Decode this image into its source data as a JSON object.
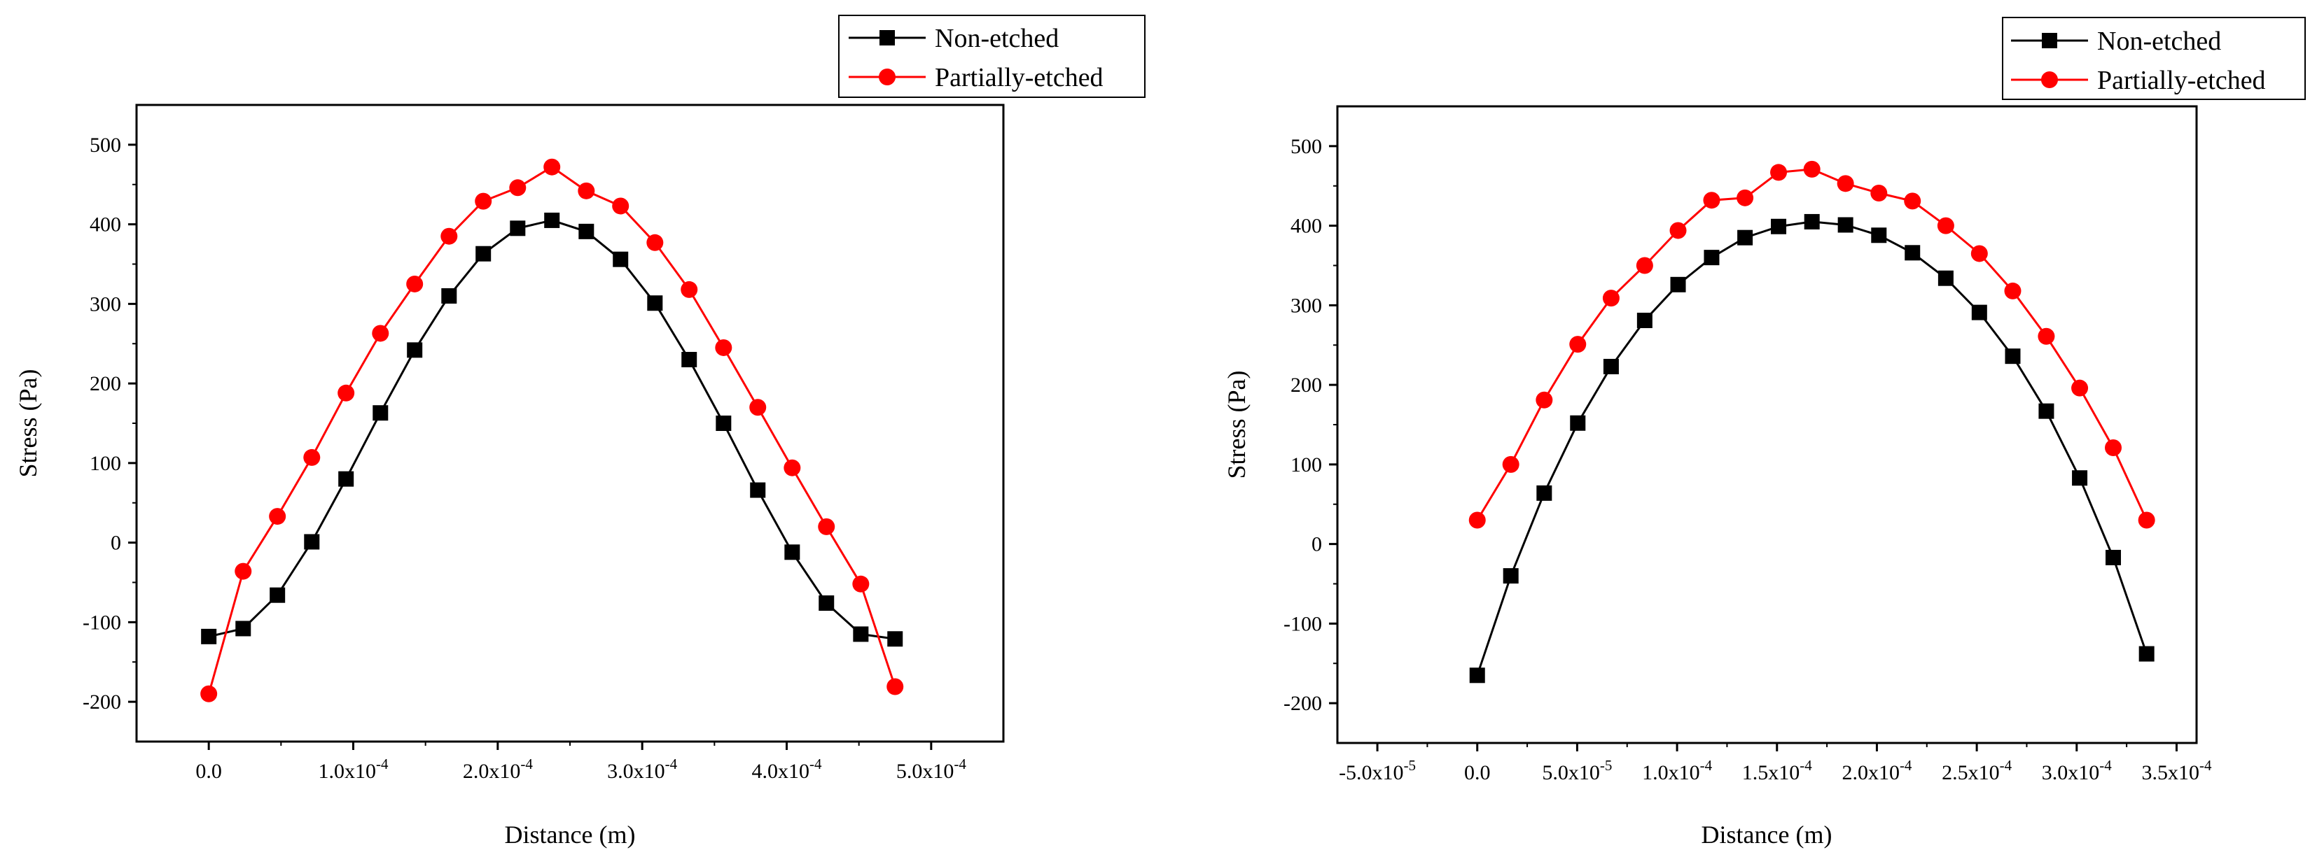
{
  "colors": {
    "series_black": "#000000",
    "series_red": "#ff0000",
    "axis": "#000000",
    "background": "#ffffff"
  },
  "chart_data": [
    {
      "type": "line",
      "xlabel": "Distance (m)",
      "ylabel": "Stress (Pa)",
      "xlim": [
        -5e-05,
        0.00055
      ],
      "ylim": [
        -250,
        550
      ],
      "x_ticks": [
        0,
        0.0001,
        0.0002,
        0.0003,
        0.0004,
        0.0005
      ],
      "x_tick_labels": [
        {
          "mantissa": "0.0",
          "exp": ""
        },
        {
          "mantissa": "1.0x10",
          "exp": "-4"
        },
        {
          "mantissa": "2.0x10",
          "exp": "-4"
        },
        {
          "mantissa": "3.0x10",
          "exp": "-4"
        },
        {
          "mantissa": "4.0x10",
          "exp": "-4"
        },
        {
          "mantissa": "5.0x10",
          "exp": "-4"
        }
      ],
      "y_ticks": [
        -200,
        -100,
        0,
        100,
        200,
        300,
        400,
        500
      ],
      "y_tick_labels": [
        "-200",
        "-100",
        "0",
        "100",
        "200",
        "300",
        "400",
        "500"
      ],
      "grid": false,
      "legend_position": "top-right",
      "series": [
        {
          "name": "Non-etched",
          "marker": "square",
          "color": "#000000",
          "x": [
            0,
            2.38e-05,
            4.75e-05,
            7.13e-05,
            9.5e-05,
            0.0001188,
            0.0001425,
            0.0001663,
            0.00019,
            0.0002138,
            0.0002375,
            0.0002613,
            0.000285,
            0.0003088,
            0.0003325,
            0.0003563,
            0.00038,
            0.0004038,
            0.0004275,
            0.0004513,
            0.000475
          ],
          "y": [
            -118,
            -108,
            -66,
            1,
            80,
            163,
            242,
            310,
            363,
            395,
            405,
            391,
            356,
            301,
            230,
            150,
            66,
            -12,
            -76,
            -115,
            -121
          ]
        },
        {
          "name": "Partially-etched",
          "marker": "circle",
          "color": "#ff0000",
          "x": [
            0,
            2.38e-05,
            4.75e-05,
            7.13e-05,
            9.5e-05,
            0.0001188,
            0.0001425,
            0.0001663,
            0.00019,
            0.0002138,
            0.0002375,
            0.0002613,
            0.000285,
            0.0003088,
            0.0003325,
            0.0003563,
            0.00038,
            0.0004038,
            0.0004275,
            0.0004513,
            0.000475
          ],
          "y": [
            -190,
            -36,
            33,
            107,
            188,
            263,
            325,
            385,
            429,
            446,
            472,
            442,
            423,
            377,
            318,
            245,
            170,
            94,
            20,
            -52,
            -181
          ]
        }
      ]
    },
    {
      "type": "line",
      "xlabel": "Distance (m)",
      "ylabel": "Stress (Pa)",
      "xlim": [
        -7e-05,
        0.00036
      ],
      "ylim": [
        -250,
        550
      ],
      "x_ticks": [
        -5e-05,
        0,
        5e-05,
        0.0001,
        0.00015,
        0.0002,
        0.00025,
        0.0003,
        0.00035
      ],
      "x_tick_labels": [
        {
          "mantissa": "-5.0x10",
          "exp": "-5"
        },
        {
          "mantissa": "0.0",
          "exp": ""
        },
        {
          "mantissa": "5.0x10",
          "exp": "-5"
        },
        {
          "mantissa": "1.0x10",
          "exp": "-4"
        },
        {
          "mantissa": "1.5x10",
          "exp": "-4"
        },
        {
          "mantissa": "2.0x10",
          "exp": "-4"
        },
        {
          "mantissa": "2.5x10",
          "exp": "-4"
        },
        {
          "mantissa": "3.0x10",
          "exp": "-4"
        },
        {
          "mantissa": "3.5x10",
          "exp": "-4"
        }
      ],
      "y_ticks": [
        -200,
        -100,
        0,
        100,
        200,
        300,
        400,
        500
      ],
      "y_tick_labels": [
        "-200",
        "-100",
        "0",
        "100",
        "200",
        "300",
        "400",
        "500"
      ],
      "grid": false,
      "legend_position": "top-right",
      "series": [
        {
          "name": "Non-etched",
          "marker": "square",
          "color": "#000000",
          "x": [
            0,
            1.68e-05,
            3.35e-05,
            5.03e-05,
            6.7e-05,
            8.38e-05,
            0.0001005,
            0.0001173,
            0.000134,
            0.0001508,
            0.0001675,
            0.0001843,
            0.000201,
            0.0002178,
            0.0002345,
            0.0002513,
            0.000268,
            0.0002848,
            0.0003015,
            0.0003183,
            0.000335
          ],
          "y": [
            -165,
            -40,
            64,
            152,
            223,
            281,
            326,
            360,
            385,
            399,
            405,
            401,
            388,
            366,
            334,
            291,
            236,
            167,
            83,
            -17,
            -138
          ]
        },
        {
          "name": "Partially-etched",
          "marker": "circle",
          "color": "#ff0000",
          "x": [
            0,
            1.68e-05,
            3.35e-05,
            5.03e-05,
            6.7e-05,
            8.38e-05,
            0.0001005,
            0.0001173,
            0.000134,
            0.0001508,
            0.0001675,
            0.0001843,
            0.000201,
            0.0002178,
            0.0002345,
            0.0002513,
            0.000268,
            0.0002848,
            0.0003015,
            0.0003183,
            0.000335
          ],
          "y": [
            30,
            100,
            181,
            251,
            309,
            350,
            394,
            432,
            435,
            467,
            471,
            453,
            441,
            431,
            400,
            365,
            318,
            261,
            196,
            121,
            30
          ]
        }
      ]
    }
  ]
}
